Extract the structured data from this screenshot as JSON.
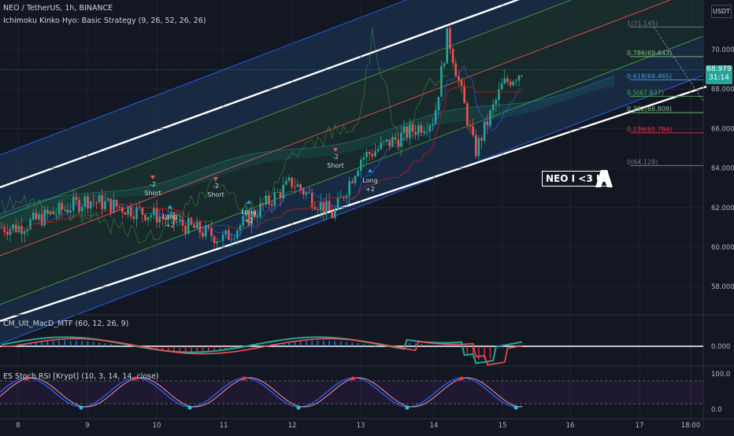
{
  "header": {
    "symbol_line": "NEO / TetherUS, 1h, BINANCE",
    "indicator_line": "Ichimoku Kinko Hyo: Basic Strategy (9, 26, 52, 26, 26)",
    "currency_button": "USDT"
  },
  "price_axis": {
    "ticks": [
      "70.000",
      "68.000",
      "66.000",
      "64.000",
      "62.000",
      "60.000",
      "58.000"
    ],
    "current_price": "68.979",
    "countdown": "31:14"
  },
  "time_axis": {
    "ticks": [
      "8",
      "9",
      "10",
      "11",
      "12",
      "13",
      "14",
      "15",
      "16",
      "17",
      "18:00"
    ]
  },
  "fib_levels": [
    {
      "ratio": "1",
      "price": "71.145",
      "label": "1(71.145)",
      "color": "#787b86"
    },
    {
      "ratio": "0.786",
      "price": "69.643",
      "label": "0.786(69.643)",
      "color": "#81c784"
    },
    {
      "ratio": "0.618",
      "price": "68.465",
      "label": "0.618(68.465)",
      "color": "#4c9ed9"
    },
    {
      "ratio": "0.5",
      "price": "67.637",
      "label": "0.5(67.637)",
      "color": "#4caf50"
    },
    {
      "ratio": "0.382",
      "price": "66.809",
      "label": "0.382(66.809)",
      "color": "#81c784"
    },
    {
      "ratio": "0.236",
      "price": "65.784",
      "label": "0.236(65.784)",
      "color": "#f23645"
    },
    {
      "ratio": "0",
      "price": "64.128",
      "label": "0(64.128)",
      "color": "#787b86"
    }
  ],
  "signals": [
    {
      "text1": "-2",
      "text2": "Short"
    },
    {
      "text1": "Long",
      "text2": "+2"
    },
    {
      "text1": "-2",
      "text2": "Short"
    },
    {
      "text1": "Long",
      "text2": "+2"
    },
    {
      "text1": "-2",
      "text2": "Short"
    },
    {
      "text1": "Long",
      "text2": "+2"
    }
  ],
  "annotation": {
    "text": "NEO I <3 U"
  },
  "macd_panel": {
    "title": "CM_Ult_MacD_MTF (60, 12, 26, 9)",
    "ticks": [
      "0.000"
    ]
  },
  "stoch_panel": {
    "title": "ES Stoch RSI [Krypt] (10, 3, 14, 14, close)",
    "ticks": [
      "100.0",
      "0.0"
    ]
  },
  "chart_data": {
    "type": "candlestick",
    "title": "NEO / TetherUS, 1h, BINANCE",
    "x_ticks": [
      "8",
      "9",
      "10",
      "11",
      "12",
      "13",
      "14",
      "15",
      "16",
      "17",
      "18:00"
    ],
    "y_ticks": [
      70,
      68,
      66,
      64,
      62,
      60,
      58
    ],
    "ylim": [
      57.6,
      71.8
    ],
    "approx_close_path": [
      {
        "x": "8",
        "close": 61.0
      },
      {
        "x": "9",
        "close": 62.4
      },
      {
        "x": "10",
        "close": 61.6
      },
      {
        "x": "11",
        "close": 60.4
      },
      {
        "x": "12",
        "close": 63.3
      },
      {
        "x": "12.6",
        "close": 61.6
      },
      {
        "x": "13",
        "close": 64.5
      },
      {
        "x": "14",
        "close": 66.5
      },
      {
        "x": "14.2",
        "close": 70.8
      },
      {
        "x": "14.6",
        "close": 64.8
      },
      {
        "x": "15",
        "close": 68.2
      },
      {
        "x": "15.3",
        "close": 68.979
      }
    ],
    "current_price": 68.979,
    "macd_zero": 0.0,
    "stoch_range": [
      0,
      100
    ]
  },
  "colors": {
    "background": "#131722",
    "up": "#26a69a",
    "down": "#ef5350",
    "channel_line": "#ffffff"
  }
}
